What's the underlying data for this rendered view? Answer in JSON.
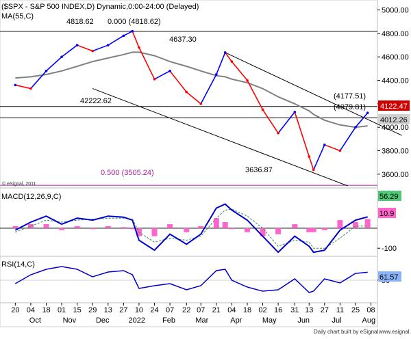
{
  "header": {
    "title": "($SPX - S&P 500 INDEX,D) Dynamic,0:00-24:00 (Delayed)",
    "ma_label": "MA(55,C)"
  },
  "colors": {
    "up": "#0000ff",
    "down": "#ff0000",
    "ma": "#808080",
    "channel": "#000000",
    "fib_line": "#a020a0",
    "fib_text": "#a020a0",
    "macd_line": "#0000cc",
    "signal_line": "#2e8b57",
    "histogram": "#ff66cc",
    "rsi_line": "#0000cc",
    "last_price_bg": "#cc0000",
    "ma_badge_bg": "#d0d0d0",
    "macd_badge_bg": "#50c878",
    "signal_badge_bg": "#ff66cc",
    "rsi_badge_bg": "#8ab4f8"
  },
  "price_panel": {
    "y_ticks": [
      "5000.00",
      "4800.00",
      "4600.00",
      "4400.00",
      "4200.00",
      "4000.00",
      "3800.00",
      "3600.00"
    ],
    "annotations": {
      "top_high": "4818.62",
      "fib_zero": "0.000 (4818.62)",
      "mar_high": "4637.30",
      "low_1": "42222.62",
      "jun_low": "3636.87",
      "fib_half": "0.500 (3505.24)",
      "level_upper": "(4177.51)",
      "level_lower": "(4079.81)"
    },
    "badges": {
      "last_price": "4122.47",
      "ma_value": "4012.26"
    },
    "copyright": "© eSignal, 2011"
  },
  "macd_panel": {
    "label": "MACD(12,26,9,C)",
    "y_ticks": [
      "-100"
    ],
    "badges": {
      "macd": "56.29",
      "signal": "10.9"
    }
  },
  "rsi_panel": {
    "label": "RSI(14,C)",
    "y_ticks": [
      "50"
    ],
    "badges": {
      "rsi": "61.57"
    }
  },
  "x_axis": {
    "day_labels": [
      "20",
      "04",
      "18",
      "01",
      "15",
      "29",
      "13",
      "27",
      "10",
      "24",
      "07",
      "22",
      "07",
      "21",
      "04",
      "18",
      "02",
      "16",
      "31",
      "13",
      "27",
      "11",
      "25",
      "08"
    ],
    "month_labels": [
      "Oct",
      "Nov",
      "Dec",
      "2022",
      "Feb",
      "Mar",
      "Apr",
      "May",
      "Jun",
      "Jul",
      "Aug"
    ]
  },
  "footer": {
    "credit": "Daily chart built by eSignal",
    "url": "www.esignal.com"
  },
  "chart_data": {
    "type": "line",
    "x": [
      "2021-09-20",
      "2021-10-04",
      "2021-10-18",
      "2021-11-01",
      "2021-11-15",
      "2021-11-29",
      "2021-12-13",
      "2021-12-27",
      "2022-01-04",
      "2022-01-10",
      "2022-01-24",
      "2022-02-07",
      "2022-02-22",
      "2022-03-07",
      "2022-03-21",
      "2022-03-29",
      "2022-04-04",
      "2022-04-18",
      "2022-05-02",
      "2022-05-16",
      "2022-05-31",
      "2022-06-13",
      "2022-06-17",
      "2022-06-27",
      "2022-07-11",
      "2022-07-25",
      "2022-08-05"
    ],
    "series": [
      {
        "name": "$SPX",
        "values": [
          4360,
          4330,
          4480,
          4600,
          4700,
          4650,
          4700,
          4780,
          4818.62,
          4680,
          4410,
          4480,
          4300,
          4200,
          4450,
          4637.3,
          4560,
          4400,
          4150,
          3950,
          4130,
          3750,
          3636.87,
          3850,
          3800,
          4000,
          4122.47
        ]
      },
      {
        "name": "MA(55,C)",
        "values": [
          4420,
          4430,
          4450,
          4480,
          4520,
          4560,
          4590,
          4620,
          4640,
          4640,
          4610,
          4560,
          4520,
          4480,
          4440,
          4430,
          4410,
          4380,
          4330,
          4260,
          4200,
          4140,
          4110,
          4060,
          4020,
          4000,
          4012.26
        ]
      }
    ],
    "ylim": [
      3500,
      5050
    ],
    "ytick_values": [
      5000,
      4800,
      4600,
      4400,
      4200,
      4000,
      3800,
      3600
    ],
    "horizontal_levels": [
      4818.62,
      4177.51,
      4079.81,
      3505.24
    ],
    "channel": {
      "upper": [
        [
          "2022-03-29",
          4637.3
        ],
        [
          "2022-09-05",
          3930
        ]
      ],
      "lower": [
        [
          "2021-11-29",
          4330
        ],
        [
          "2022-07-18",
          3500
        ]
      ]
    },
    "macd": {
      "ylim": [
        -130,
        180
      ],
      "ytick_values": [
        -100
      ],
      "macd_values": [
        -10,
        30,
        60,
        20,
        50,
        40,
        60,
        55,
        40,
        -60,
        -110,
        -30,
        -80,
        -30,
        100,
        120,
        90,
        40,
        -40,
        -120,
        -40,
        -90,
        -120,
        -110,
        -10,
        40,
        56.29
      ],
      "signal_values": [
        -20,
        10,
        40,
        30,
        40,
        45,
        50,
        50,
        45,
        -20,
        -70,
        -50,
        -60,
        -40,
        50,
        90,
        95,
        60,
        0,
        -90,
        -60,
        -70,
        -100,
        -100,
        -50,
        10,
        10.9
      ]
    },
    "rsi": {
      "ylim": [
        20,
        80
      ],
      "ytick_values": [
        50
      ],
      "values": [
        45,
        58,
        66,
        70,
        66,
        55,
        62,
        64,
        58,
        38,
        42,
        45,
        36,
        42,
        64,
        66,
        50,
        40,
        34,
        36,
        52,
        32,
        34,
        52,
        46,
        60,
        61.57
      ]
    }
  }
}
